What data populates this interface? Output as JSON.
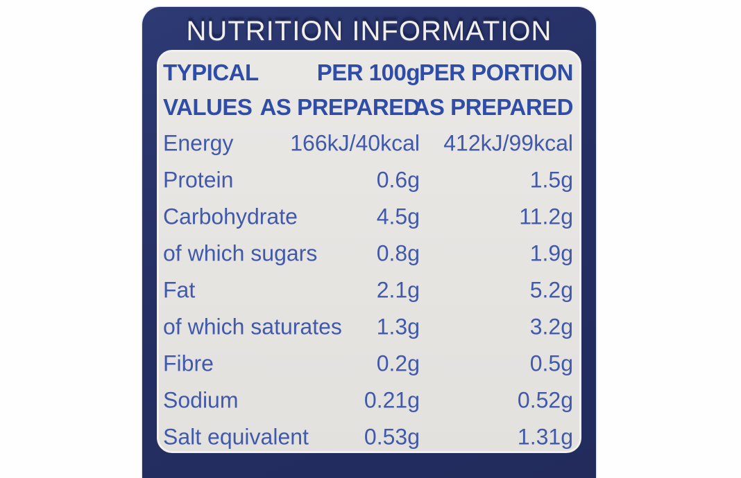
{
  "title": "NUTRITION INFORMATION",
  "table": {
    "header": {
      "typical": [
        "TYPICAL",
        "VALUES"
      ],
      "per100g": [
        "PER 100g",
        "AS PREPARED"
      ],
      "perPortion": [
        "PER PORTION",
        "AS PREPARED"
      ]
    },
    "rows": [
      {
        "name": "Energy",
        "per100g": "166kJ/40kcal",
        "perPortion": "412kJ/99kcal"
      },
      {
        "name": "Protein",
        "per100g": "0.6g",
        "perPortion": "1.5g"
      },
      {
        "name": "Carbohydrate",
        "per100g": "4.5g",
        "perPortion": "11.2g"
      },
      {
        "name": "of which sugars",
        "per100g": "0.8g",
        "perPortion": "1.9g"
      },
      {
        "name": "Fat",
        "per100g": "2.1g",
        "perPortion": "5.2g"
      },
      {
        "name": "of which saturates",
        "per100g": "1.3g",
        "perPortion": "3.2g"
      },
      {
        "name": "Fibre",
        "per100g": "0.2g",
        "perPortion": "0.5g"
      },
      {
        "name": "Sodium",
        "per100g": "0.21g",
        "perPortion": "0.52g"
      },
      {
        "name": "Salt equivalent",
        "per100g": "0.53g",
        "perPortion": "1.31g"
      }
    ]
  },
  "colors": {
    "navy_background": "#252f63",
    "panel_background": "#e6e4e1",
    "body_text_blue": "#4059ab",
    "header_text_blue": "#2f4da6",
    "title_text": "#f2efea"
  }
}
